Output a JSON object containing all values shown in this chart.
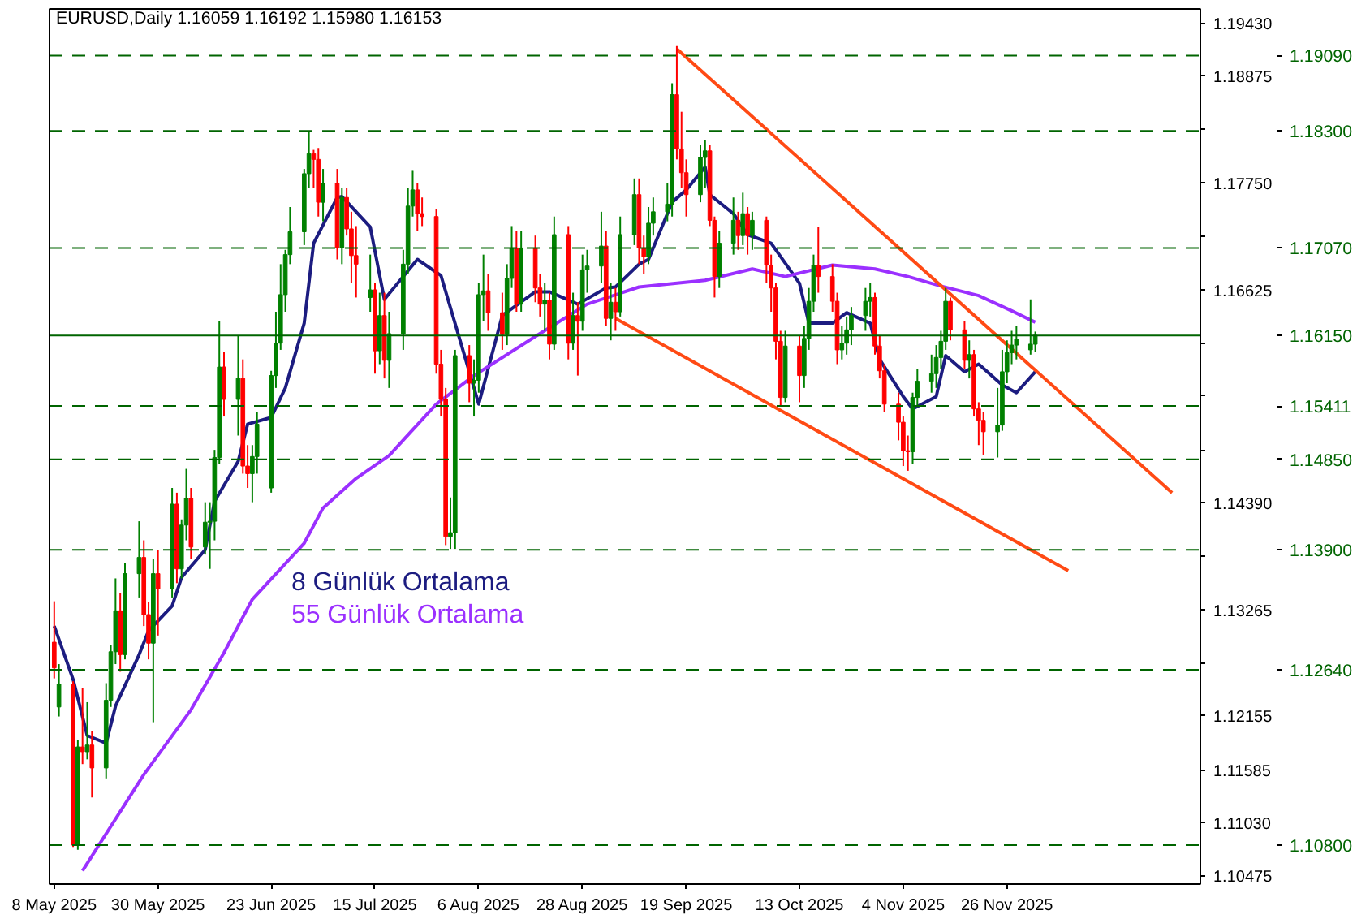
{
  "chart_data": {
    "type": "candlestick",
    "title": "EURUSD,Daily  1.16059 1.16192 1.15980 1.16153",
    "x": [
      "2025-05-08",
      "2025-05-09",
      "2025-05-12",
      "2025-05-13",
      "2025-05-14",
      "2025-05-15",
      "2025-05-16",
      "2025-05-19",
      "2025-05-20",
      "2025-05-21",
      "2025-05-22",
      "2025-05-23",
      "2025-05-26",
      "2025-05-27",
      "2025-05-28",
      "2025-05-29",
      "2025-05-30",
      "2025-06-02",
      "2025-06-03",
      "2025-06-04",
      "2025-06-05",
      "2025-06-06",
      "2025-06-09",
      "2025-06-10",
      "2025-06-11",
      "2025-06-12",
      "2025-06-13",
      "2025-06-16",
      "2025-06-17",
      "2025-06-18",
      "2025-06-19",
      "2025-06-20",
      "2025-06-23",
      "2025-06-24",
      "2025-06-25",
      "2025-06-26",
      "2025-06-27",
      "2025-06-30",
      "2025-07-01",
      "2025-07-02",
      "2025-07-03",
      "2025-07-04",
      "2025-07-07",
      "2025-07-08",
      "2025-07-09",
      "2025-07-10",
      "2025-07-11",
      "2025-07-14",
      "2025-07-15",
      "2025-07-16",
      "2025-07-17",
      "2025-07-18",
      "2025-07-21",
      "2025-07-22",
      "2025-07-23",
      "2025-07-24",
      "2025-07-25",
      "2025-07-28",
      "2025-07-29",
      "2025-07-30",
      "2025-07-31",
      "2025-08-01",
      "2025-08-04",
      "2025-08-05",
      "2025-08-06",
      "2025-08-07",
      "2025-08-08",
      "2025-08-11",
      "2025-08-12",
      "2025-08-13",
      "2025-08-14",
      "2025-08-15",
      "2025-08-18",
      "2025-08-19",
      "2025-08-20",
      "2025-08-21",
      "2025-08-22",
      "2025-08-25",
      "2025-08-26",
      "2025-08-27",
      "2025-08-28",
      "2025-08-29",
      "2025-09-01",
      "2025-09-02",
      "2025-09-03",
      "2025-09-04",
      "2025-09-05",
      "2025-09-08",
      "2025-09-09",
      "2025-09-10",
      "2025-09-11",
      "2025-09-12",
      "2025-09-15",
      "2025-09-16",
      "2025-09-17",
      "2025-09-18",
      "2025-09-19",
      "2025-09-22",
      "2025-09-23",
      "2025-09-24",
      "2025-09-25",
      "2025-09-26",
      "2025-09-29",
      "2025-09-30",
      "2025-10-01",
      "2025-10-02",
      "2025-10-03",
      "2025-10-06",
      "2025-10-07",
      "2025-10-08",
      "2025-10-09",
      "2025-10-10",
      "2025-10-13",
      "2025-10-14",
      "2025-10-15",
      "2025-10-16",
      "2025-10-17",
      "2025-10-20",
      "2025-10-21",
      "2025-10-22",
      "2025-10-23",
      "2025-10-24",
      "2025-10-27",
      "2025-10-28",
      "2025-10-29",
      "2025-10-30",
      "2025-10-31",
      "2025-11-03",
      "2025-11-04",
      "2025-11-05",
      "2025-11-06",
      "2025-11-07",
      "2025-11-10",
      "2025-11-11",
      "2025-11-12",
      "2025-11-13",
      "2025-11-14",
      "2025-11-17",
      "2025-11-18",
      "2025-11-19",
      "2025-11-20",
      "2025-11-21",
      "2025-11-24",
      "2025-11-25",
      "2025-11-26",
      "2025-11-27",
      "2025-11-28",
      "2025-12-01",
      "2025-12-02"
    ],
    "ohlc": [
      [
        1.1293,
        1.1336,
        1.1255,
        1.1266
      ],
      [
        1.1225,
        1.127,
        1.1215,
        1.1249
      ],
      [
        1.1249,
        1.1252,
        1.1078,
        1.108
      ],
      [
        1.108,
        1.119,
        1.1075,
        1.1183
      ],
      [
        1.1183,
        1.1245,
        1.1165,
        1.1178
      ],
      [
        1.1178,
        1.123,
        1.117,
        1.1185
      ],
      [
        1.1185,
        1.12,
        1.113,
        1.1161
      ],
      [
        1.1161,
        1.125,
        1.115,
        1.1232
      ],
      [
        1.1232,
        1.129,
        1.1225,
        1.1283
      ],
      [
        1.1283,
        1.136,
        1.127,
        1.1326
      ],
      [
        1.1326,
        1.1345,
        1.1262,
        1.128
      ],
      [
        1.128,
        1.1376,
        1.1275,
        1.1365
      ],
      [
        1.1365,
        1.142,
        1.134,
        1.1382
      ],
      [
        1.1382,
        1.14,
        1.131,
        1.1322
      ],
      [
        1.1322,
        1.1335,
        1.1275,
        1.1292
      ],
      [
        1.1292,
        1.138,
        1.1209,
        1.1365
      ],
      [
        1.1365,
        1.139,
        1.13,
        1.1349
      ],
      [
        1.1349,
        1.1455,
        1.134,
        1.1438
      ],
      [
        1.1438,
        1.145,
        1.1355,
        1.137
      ],
      [
        1.137,
        1.1422,
        1.136,
        1.1416
      ],
      [
        1.1416,
        1.1475,
        1.14,
        1.1444
      ],
      [
        1.1444,
        1.1455,
        1.138,
        1.1393
      ],
      [
        1.1393,
        1.144,
        1.1385,
        1.1419
      ],
      [
        1.1419,
        1.144,
        1.137,
        1.142
      ],
      [
        1.142,
        1.1495,
        1.14,
        1.1487
      ],
      [
        1.1487,
        1.163,
        1.148,
        1.1582
      ],
      [
        1.1582,
        1.1598,
        1.153,
        1.1548
      ],
      [
        1.1548,
        1.1615,
        1.151,
        1.157
      ],
      [
        1.157,
        1.159,
        1.147,
        1.1478
      ],
      [
        1.1478,
        1.15,
        1.1455,
        1.147
      ],
      [
        1.147,
        1.15,
        1.144,
        1.1488
      ],
      [
        1.1488,
        1.1535,
        1.147,
        1.1522
      ],
      [
        1.1455,
        1.1578,
        1.145,
        1.1573
      ],
      [
        1.1573,
        1.164,
        1.156,
        1.1607
      ],
      [
        1.1607,
        1.169,
        1.16,
        1.1658
      ],
      [
        1.1658,
        1.1705,
        1.164,
        1.17
      ],
      [
        1.17,
        1.175,
        1.169,
        1.1724
      ],
      [
        1.1724,
        1.179,
        1.171,
        1.1785
      ],
      [
        1.1785,
        1.1829,
        1.177,
        1.1806
      ],
      [
        1.1806,
        1.181,
        1.177,
        1.18
      ],
      [
        1.18,
        1.1812,
        1.174,
        1.1755
      ],
      [
        1.1755,
        1.179,
        1.1735,
        1.1775
      ],
      [
        1.1775,
        1.179,
        1.1695,
        1.1707
      ],
      [
        1.1707,
        1.177,
        1.169,
        1.176
      ],
      [
        1.176,
        1.177,
        1.172,
        1.1727
      ],
      [
        1.1727,
        1.1745,
        1.167,
        1.1699
      ],
      [
        1.1699,
        1.173,
        1.1655,
        1.169
      ],
      [
        1.1655,
        1.17,
        1.164,
        1.1663
      ],
      [
        1.1663,
        1.167,
        1.1575,
        1.1599
      ],
      [
        1.1599,
        1.166,
        1.1585,
        1.1636
      ],
      [
        1.1636,
        1.166,
        1.157,
        1.1589
      ],
      [
        1.1589,
        1.164,
        1.156,
        1.1617
      ],
      [
        1.1617,
        1.1705,
        1.16,
        1.169
      ],
      [
        1.169,
        1.177,
        1.168,
        1.1751
      ],
      [
        1.1751,
        1.1788,
        1.174,
        1.1768
      ],
      [
        1.1768,
        1.1775,
        1.1725,
        1.1743
      ],
      [
        1.1743,
        1.176,
        1.173,
        1.174
      ],
      [
        1.174,
        1.1748,
        1.1575,
        1.1585
      ],
      [
        1.1585,
        1.16,
        1.153,
        1.1548
      ],
      [
        1.1548,
        1.156,
        1.1395,
        1.1404
      ],
      [
        1.1404,
        1.1445,
        1.1391,
        1.1408
      ],
      [
        1.1408,
        1.16,
        1.1391,
        1.1594
      ],
      [
        1.1594,
        1.1605,
        1.1545,
        1.1565
      ],
      [
        1.1565,
        1.159,
        1.153,
        1.1568
      ],
      [
        1.1568,
        1.167,
        1.1555,
        1.1658
      ],
      [
        1.1658,
        1.17,
        1.163,
        1.1662
      ],
      [
        1.1662,
        1.168,
        1.162,
        1.1639
      ],
      [
        1.1639,
        1.166,
        1.16,
        1.1616
      ],
      [
        1.1616,
        1.169,
        1.1605,
        1.1675
      ],
      [
        1.1675,
        1.173,
        1.1665,
        1.1707
      ],
      [
        1.1707,
        1.1725,
        1.164,
        1.1648
      ],
      [
        1.1648,
        1.1725,
        1.164,
        1.1707
      ],
      [
        1.1707,
        1.172,
        1.165,
        1.1665
      ],
      [
        1.1665,
        1.168,
        1.1635,
        1.1648
      ],
      [
        1.1648,
        1.167,
        1.162,
        1.1652
      ],
      [
        1.1652,
        1.166,
        1.159,
        1.1606
      ],
      [
        1.1606,
        1.174,
        1.16,
        1.1721
      ],
      [
        1.1721,
        1.173,
        1.159,
        1.1607
      ],
      [
        1.1607,
        1.166,
        1.16,
        1.1636
      ],
      [
        1.1636,
        1.165,
        1.1573,
        1.163
      ],
      [
        1.163,
        1.17,
        1.162,
        1.1684
      ],
      [
        1.1684,
        1.1705,
        1.166,
        1.1688
      ],
      [
        1.1688,
        1.1745,
        1.167,
        1.1709
      ],
      [
        1.1709,
        1.1725,
        1.1625,
        1.1633
      ],
      [
        1.1633,
        1.167,
        1.161,
        1.165
      ],
      [
        1.165,
        1.1665,
        1.162,
        1.164
      ],
      [
        1.164,
        1.174,
        1.1635,
        1.1721
      ],
      [
        1.1721,
        1.178,
        1.171,
        1.1763
      ],
      [
        1.1763,
        1.178,
        1.169,
        1.1707
      ],
      [
        1.1707,
        1.172,
        1.168,
        1.1698
      ],
      [
        1.1698,
        1.175,
        1.169,
        1.1733
      ],
      [
        1.1733,
        1.176,
        1.172,
        1.1745
      ],
      [
        1.1745,
        1.1775,
        1.1735,
        1.1753
      ],
      [
        1.1753,
        1.188,
        1.174,
        1.1868
      ],
      [
        1.1868,
        1.1919,
        1.18,
        1.1811
      ],
      [
        1.1811,
        1.185,
        1.177,
        1.1786
      ],
      [
        1.1786,
        1.18,
        1.174,
        1.1763
      ],
      [
        1.1763,
        1.1815,
        1.1755,
        1.1802
      ],
      [
        1.1802,
        1.182,
        1.177,
        1.1809
      ],
      [
        1.1809,
        1.1815,
        1.173,
        1.1736
      ],
      [
        1.1736,
        1.174,
        1.1655,
        1.1677
      ],
      [
        1.1677,
        1.1725,
        1.1665,
        1.1712
      ],
      [
        1.1712,
        1.176,
        1.17,
        1.1736
      ],
      [
        1.1736,
        1.1745,
        1.1705,
        1.172
      ],
      [
        1.172,
        1.1765,
        1.171,
        1.1743
      ],
      [
        1.1743,
        1.175,
        1.17,
        1.172
      ],
      [
        1.172,
        1.1745,
        1.1705,
        1.1736
      ],
      [
        1.1736,
        1.174,
        1.167,
        1.1689
      ],
      [
        1.1689,
        1.17,
        1.164,
        1.1665
      ],
      [
        1.1665,
        1.167,
        1.159,
        1.1609
      ],
      [
        1.1609,
        1.162,
        1.1541,
        1.155
      ],
      [
        1.155,
        1.162,
        1.1545,
        1.1604
      ],
      [
        1.1604,
        1.1615,
        1.1545,
        1.1573
      ],
      [
        1.1573,
        1.1625,
        1.156,
        1.1612
      ],
      [
        1.1612,
        1.1665,
        1.16,
        1.1651
      ],
      [
        1.1651,
        1.17,
        1.164,
        1.1689
      ],
      [
        1.1689,
        1.1729,
        1.166,
        1.1677
      ],
      [
        1.1677,
        1.169,
        1.164,
        1.1651
      ],
      [
        1.1651,
        1.166,
        1.1585,
        1.16
      ],
      [
        1.16,
        1.1625,
        1.159,
        1.1607
      ],
      [
        1.1607,
        1.1635,
        1.1595,
        1.1621
      ],
      [
        1.1621,
        1.1645,
        1.1605,
        1.1636
      ],
      [
        1.1636,
        1.1665,
        1.162,
        1.1651
      ],
      [
        1.1651,
        1.167,
        1.1635,
        1.1655
      ],
      [
        1.1655,
        1.166,
        1.1595,
        1.1604
      ],
      [
        1.1604,
        1.1615,
        1.157,
        1.1578
      ],
      [
        1.1578,
        1.1585,
        1.1535,
        1.1543
      ],
      [
        1.1543,
        1.1555,
        1.1505,
        1.1524
      ],
      [
        1.1524,
        1.153,
        1.1478,
        1.1494
      ],
      [
        1.1494,
        1.151,
        1.1473,
        1.1493
      ],
      [
        1.1493,
        1.1555,
        1.148,
        1.155
      ],
      [
        1.155,
        1.158,
        1.154,
        1.1567
      ],
      [
        1.1567,
        1.1595,
        1.1555,
        1.1575
      ],
      [
        1.1575,
        1.1605,
        1.156,
        1.1592
      ],
      [
        1.1592,
        1.162,
        1.158,
        1.1609
      ],
      [
        1.1609,
        1.1665,
        1.16,
        1.1651
      ],
      [
        1.1651,
        1.1655,
        1.161,
        1.1621
      ],
      [
        1.1621,
        1.163,
        1.158,
        1.1589
      ],
      [
        1.1589,
        1.161,
        1.157,
        1.1595
      ],
      [
        1.1595,
        1.16,
        1.153,
        1.1538
      ],
      [
        1.1538,
        1.1545,
        1.15,
        1.1526
      ],
      [
        1.1526,
        1.1535,
        1.149,
        1.1514
      ],
      [
        1.1514,
        1.156,
        1.1487,
        1.1521
      ],
      [
        1.1521,
        1.16,
        1.1515,
        1.1577
      ],
      [
        1.1577,
        1.161,
        1.1565,
        1.1597
      ],
      [
        1.1597,
        1.162,
        1.1585,
        1.1605
      ],
      [
        1.1605,
        1.1625,
        1.159,
        1.1611
      ],
      [
        1.16,
        1.1653,
        1.1595,
        1.1606
      ],
      [
        1.16059,
        1.16192,
        1.1598,
        1.16153
      ]
    ],
    "series": [
      {
        "type": "line",
        "name": "8 Günlük Ortalama",
        "color": "#1c1c80",
        "x": [
          "2025-05-08",
          "2025-05-12",
          "2025-05-15",
          "2025-05-19",
          "2025-05-21",
          "2025-05-26",
          "2025-05-28",
          "2025-06-02",
          "2025-06-04",
          "2025-06-09",
          "2025-06-11",
          "2025-06-16",
          "2025-06-18",
          "2025-06-23",
          "2025-06-26",
          "2025-06-30",
          "2025-07-02",
          "2025-07-07",
          "2025-07-08",
          "2025-07-14",
          "2025-07-17",
          "2025-07-24",
          "2025-07-29",
          "2025-08-04",
          "2025-08-06",
          "2025-08-11",
          "2025-08-18",
          "2025-08-21",
          "2025-08-27",
          "2025-09-02",
          "2025-09-04",
          "2025-09-09",
          "2025-09-11",
          "2025-09-16",
          "2025-09-19",
          "2025-09-23",
          "2025-09-24",
          "2025-09-29",
          "2025-10-02",
          "2025-10-07",
          "2025-10-13",
          "2025-10-15",
          "2025-10-20",
          "2025-10-23",
          "2025-10-28",
          "2025-10-30",
          "2025-11-04",
          "2025-11-06",
          "2025-11-11",
          "2025-11-13",
          "2025-11-17",
          "2025-11-20",
          "2025-11-25",
          "2025-11-28",
          "2025-12-02"
        ],
        "values": [
          1.131,
          1.1254,
          1.1195,
          1.1187,
          1.1226,
          1.128,
          1.1305,
          1.1331,
          1.1361,
          1.139,
          1.1441,
          1.1483,
          1.1522,
          1.1529,
          1.156,
          1.1628,
          1.1712,
          1.176,
          1.1761,
          1.1729,
          1.1653,
          1.1695,
          1.1678,
          1.1577,
          1.1543,
          1.1636,
          1.1661,
          1.1661,
          1.1648,
          1.1665,
          1.1666,
          1.169,
          1.1695,
          1.1755,
          1.1768,
          1.1792,
          1.1763,
          1.1743,
          1.1721,
          1.1712,
          1.167,
          1.1628,
          1.1628,
          1.1639,
          1.1628,
          1.159,
          1.1551,
          1.1538,
          1.1551,
          1.1594,
          1.1577,
          1.1585,
          1.1563,
          1.1555,
          1.1577
        ]
      },
      {
        "type": "line",
        "name": "55 Günlük Ortalama",
        "color": "#9b30ff",
        "x": [
          "2025-05-14",
          "2025-05-27",
          "2025-06-06",
          "2025-06-13",
          "2025-06-19",
          "2025-06-30",
          "2025-07-04",
          "2025-07-11",
          "2025-07-18",
          "2025-07-28",
          "2025-08-05",
          "2025-08-18",
          "2025-08-29",
          "2025-09-09",
          "2025-09-23",
          "2025-10-03",
          "2025-10-10",
          "2025-10-20",
          "2025-10-29",
          "2025-11-05",
          "2025-11-12",
          "2025-11-20",
          "2025-11-27",
          "2025-12-02"
        ],
        "values": [
          1.1053,
          1.1154,
          1.1222,
          1.1282,
          1.1338,
          1.1397,
          1.1434,
          1.1465,
          1.1489,
          1.1543,
          1.1573,
          1.1614,
          1.1648,
          1.1666,
          1.1673,
          1.1685,
          1.1677,
          1.1689,
          1.1685,
          1.1677,
          1.1667,
          1.1657,
          1.1641,
          1.1629
        ]
      },
      {
        "type": "line",
        "color": "#ff4a14",
        "x": [
          "2025-09-17",
          "2025-12-31"
        ],
        "values": [
          1.1916,
          1.145
        ]
      },
      {
        "type": "line",
        "color": "#ff4a14",
        "x": [
          "2025-09-04",
          "2025-12-09"
        ],
        "values": [
          1.1633,
          1.1368
        ]
      }
    ],
    "xlim": [
      "2025-05-07",
      "2026-01-06"
    ],
    "xticks": [
      {
        "value": "2025-05-08",
        "label": "8 May 2025"
      },
      {
        "value": "2025-05-30",
        "label": "30 May 2025"
      },
      {
        "value": "2025-06-23",
        "label": "23 Jun 2025"
      },
      {
        "value": "2025-07-15",
        "label": "15 Jul 2025"
      },
      {
        "value": "2025-08-06",
        "label": "6 Aug 2025"
      },
      {
        "value": "2025-08-28",
        "label": "28 Aug 2025"
      },
      {
        "value": "2025-09-19",
        "label": "19 Sep 2025"
      },
      {
        "value": "2025-10-13",
        "label": "13 Oct 2025"
      },
      {
        "value": "2025-11-04",
        "label": "4 Nov 2025"
      },
      {
        "value": "2025-11-26",
        "label": "26 Nov 2025"
      }
    ],
    "ylim": [
      1.1039,
      1.1958
    ],
    "yticks": [
      {
        "value": 1.1943,
        "label": "1.19430"
      },
      {
        "value": 1.18875,
        "label": "1.18875"
      },
      {
        "value": 1.1832,
        "label": null
      },
      {
        "value": 1.1775,
        "label": "1.17750"
      },
      {
        "value": 1.17195,
        "label": null
      },
      {
        "value": 1.16625,
        "label": "1.16625"
      },
      {
        "value": 1.1607,
        "label": null
      },
      {
        "value": 1.15515,
        "label": null
      },
      {
        "value": 1.14945,
        "label": null
      },
      {
        "value": 1.1439,
        "label": "1.14390"
      },
      {
        "value": 1.13835,
        "label": null
      },
      {
        "value": 1.13265,
        "label": "1.13265"
      },
      {
        "value": 1.1271,
        "label": null
      },
      {
        "value": 1.12155,
        "label": "1.12155"
      },
      {
        "value": 1.11585,
        "label": "1.11585"
      },
      {
        "value": 1.1103,
        "label": "1.11030"
      },
      {
        "value": 1.10475,
        "label": "1.10475"
      }
    ],
    "ref_lines": [
      {
        "axis": "y",
        "value": 1.1909,
        "label": "1.19090",
        "color": "#006400",
        "line_style": "dashed"
      },
      {
        "axis": "y",
        "value": 1.183,
        "label": "1.18300",
        "color": "#006400",
        "line_style": "dashed"
      },
      {
        "axis": "y",
        "value": 1.1707,
        "label": "1.17070",
        "color": "#006400",
        "line_style": "dashed"
      },
      {
        "axis": "y",
        "value": 1.1615,
        "label": "1.16150",
        "color": "#006400",
        "line_style": "solid"
      },
      {
        "axis": "y",
        "value": 1.15411,
        "label": "1.15411",
        "color": "#006400",
        "line_style": "dashed"
      },
      {
        "axis": "y",
        "value": 1.1485,
        "label": "1.14850",
        "color": "#006400",
        "line_style": "dashed"
      },
      {
        "axis": "y",
        "value": 1.139,
        "label": "1.13900",
        "color": "#006400",
        "line_style": "dashed"
      },
      {
        "axis": "y",
        "value": 1.1264,
        "label": "1.12640",
        "color": "#006400",
        "line_style": "dashed"
      },
      {
        "axis": "y",
        "value": 1.108,
        "label": "1.10800",
        "color": "#006400",
        "line_style": "dashed"
      }
    ],
    "grid": false
  }
}
